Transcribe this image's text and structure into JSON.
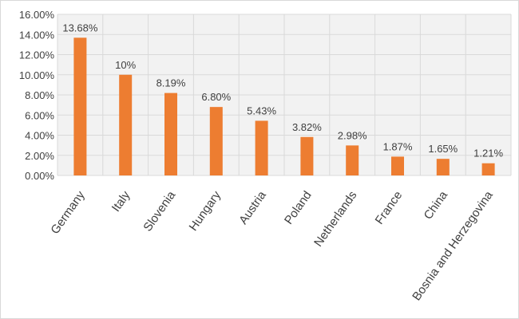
{
  "chart_data": {
    "type": "bar",
    "title": "",
    "xlabel": "",
    "ylabel": "",
    "categories": [
      "Germany",
      "Italy",
      "Slovenia",
      "Hungary",
      "Austria",
      "Poland",
      "Netherlands",
      "France",
      "China",
      "Bosnia and Herzegovina"
    ],
    "values": [
      13.68,
      10,
      8.19,
      6.8,
      5.43,
      3.82,
      2.98,
      1.87,
      1.65,
      1.21
    ],
    "data_labels": [
      "13.68%",
      "10%",
      "8.19%",
      "6.80%",
      "5.43%",
      "3.82%",
      "2.98%",
      "1.87%",
      "1.65%",
      "1.21%"
    ],
    "ylim": [
      0,
      16
    ],
    "y_ticks": [
      0,
      2,
      4,
      6,
      8,
      10,
      12,
      14,
      16
    ],
    "y_tick_labels": [
      "0.00%",
      "2.00%",
      "4.00%",
      "6.00%",
      "8.00%",
      "10.00%",
      "12.00%",
      "14.00%",
      "16.00%"
    ],
    "grid": true,
    "legend": "none",
    "colors": {
      "bar": "#ED7D31",
      "plot_background": "#F2F2F2",
      "grid": "#D9D9D9",
      "text": "#404040"
    }
  }
}
